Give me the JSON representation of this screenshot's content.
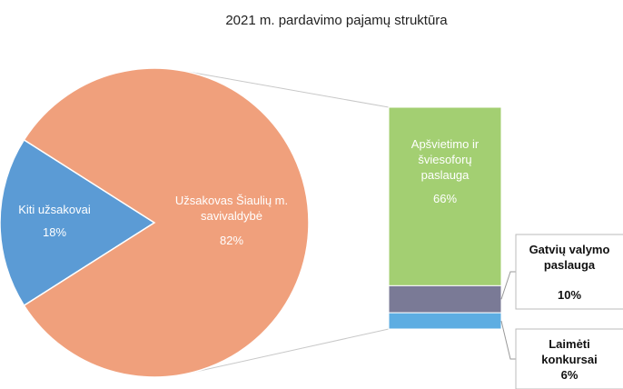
{
  "chart_data": {
    "type": "pie-of-bar",
    "title": "2021 m. pardavimo pajamų struktūra",
    "pie": {
      "categories": [
        "Kiti užsakovai",
        "Užsakovas Šiaulių m. savivaldybė"
      ],
      "values": [
        18,
        82
      ],
      "value_labels": [
        "18%",
        "82%"
      ],
      "colors": [
        "#5b9bd5",
        "#f0a07c"
      ]
    },
    "bar": {
      "categories": [
        "Apšvietimo ir šviesoforų paslauga",
        "Gatvių valymo paslauga",
        "Laimėti konkursai"
      ],
      "values": [
        66,
        10,
        6
      ],
      "value_labels": [
        "66%",
        "10%",
        "6%"
      ],
      "colors": [
        "#a3cf72",
        "#7a7a96",
        "#5dade2"
      ]
    }
  }
}
